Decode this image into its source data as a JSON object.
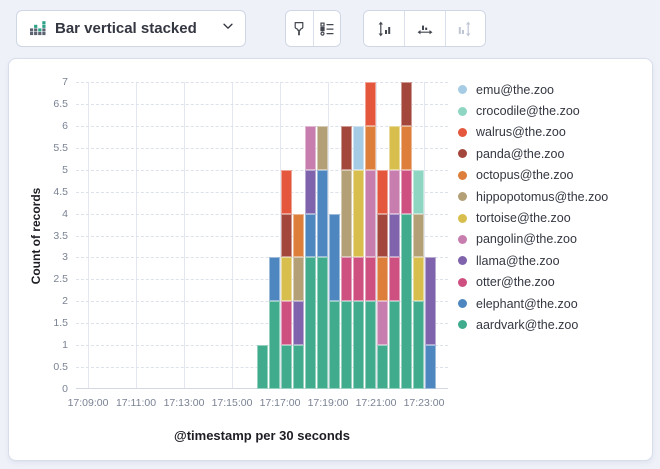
{
  "toolbar": {
    "chart_type_label": "Bar vertical stacked",
    "chart_type_icon": "stacked-bar-chart-icon",
    "buttons": [
      {
        "name": "visual-options",
        "icon": "paintbrush-icon",
        "disabled": false
      },
      {
        "name": "legend-settings",
        "icon": "legend-list-icon",
        "disabled": false
      },
      {
        "name": "left-axis-settings",
        "icon": "left-axis-icon",
        "disabled": false
      },
      {
        "name": "bottom-axis-settings",
        "icon": "bottom-axis-icon",
        "disabled": false
      },
      {
        "name": "right-axis-settings",
        "icon": "right-axis-icon",
        "disabled": true
      }
    ]
  },
  "chart_data": {
    "type": "bar",
    "stacked": true,
    "orientation": "vertical",
    "xlabel": "@timestamp per 30 seconds",
    "ylabel": "Count of records",
    "ylim": [
      0,
      7
    ],
    "y_ticks": [
      0,
      0.5,
      1,
      1.5,
      2,
      2.5,
      3,
      3.5,
      4,
      4.5,
      5,
      5.5,
      6,
      6.5,
      7
    ],
    "x_tick_labels": [
      "17:09:00",
      "17:11:00",
      "17:13:00",
      "17:15:00",
      "17:17:00",
      "17:19:00",
      "17:21:00",
      "17:23:00"
    ],
    "x_axis_start": "17:08:30",
    "x_axis_span_seconds": 930,
    "bin_seconds": 30,
    "grid": true,
    "legend_position": "right",
    "categories": [
      "17:16:00",
      "17:16:30",
      "17:17:00",
      "17:17:30",
      "17:18:00",
      "17:18:30",
      "17:19:00",
      "17:19:30",
      "17:20:00",
      "17:20:30",
      "17:21:00",
      "17:21:30",
      "17:22:00",
      "17:22:30",
      "17:23:00"
    ],
    "series": [
      {
        "name": "aardvark@the.zoo",
        "color": "#41AB8D",
        "values": [
          1,
          2,
          1,
          1,
          3,
          3,
          2,
          2,
          2,
          2,
          1,
          2,
          4,
          2,
          0
        ]
      },
      {
        "name": "elephant@the.zoo",
        "color": "#4E86BF",
        "values": [
          0,
          1,
          0,
          0,
          1,
          2,
          2,
          0,
          0,
          0,
          0,
          0,
          0,
          0,
          1
        ]
      },
      {
        "name": "otter@the.zoo",
        "color": "#CE5081",
        "values": [
          0,
          0,
          1,
          0,
          0,
          0,
          0,
          1,
          1,
          1,
          0,
          1,
          1,
          0,
          0
        ]
      },
      {
        "name": "llama@the.zoo",
        "color": "#7F63AC",
        "values": [
          0,
          0,
          0,
          1,
          1,
          0,
          0,
          0,
          0,
          0,
          0,
          1,
          0,
          0,
          2
        ]
      },
      {
        "name": "pangolin@the.zoo",
        "color": "#C77EAE",
        "values": [
          0,
          0,
          0,
          0,
          1,
          0,
          0,
          0,
          0,
          2,
          1,
          1,
          0,
          0,
          0
        ]
      },
      {
        "name": "tortoise@the.zoo",
        "color": "#D8BE4D",
        "values": [
          0,
          0,
          1,
          0,
          0,
          0,
          0,
          0,
          2,
          0,
          0,
          1,
          0,
          1,
          0
        ]
      },
      {
        "name": "hippopotomus@the.zoo",
        "color": "#B3A077",
        "values": [
          0,
          0,
          0,
          1,
          0,
          1,
          0,
          2,
          0,
          0,
          0,
          0,
          0,
          1,
          0
        ]
      },
      {
        "name": "octopus@the.zoo",
        "color": "#DD7E3B",
        "values": [
          0,
          0,
          0,
          1,
          0,
          0,
          0,
          0,
          0,
          1,
          1,
          0,
          1,
          0,
          0
        ]
      },
      {
        "name": "panda@the.zoo",
        "color": "#A3463B",
        "values": [
          0,
          0,
          1,
          0,
          0,
          0,
          0,
          1,
          0,
          0,
          1,
          0,
          1,
          0,
          0
        ]
      },
      {
        "name": "walrus@the.zoo",
        "color": "#E4573D",
        "values": [
          0,
          0,
          1,
          0,
          0,
          0,
          0,
          0,
          0,
          1,
          1,
          0,
          0,
          0,
          0
        ]
      },
      {
        "name": "crocodile@the.zoo",
        "color": "#8FD6C2",
        "values": [
          0,
          0,
          0,
          0,
          0,
          0,
          0,
          0,
          0,
          0,
          0,
          0,
          0,
          1,
          0
        ]
      },
      {
        "name": "emu@the.zoo",
        "color": "#A6CBE5",
        "values": [
          0,
          0,
          0,
          0,
          0,
          0,
          0,
          0,
          1,
          0,
          0,
          0,
          0,
          0,
          0
        ]
      }
    ],
    "legend_order": "reverse_of_series"
  }
}
